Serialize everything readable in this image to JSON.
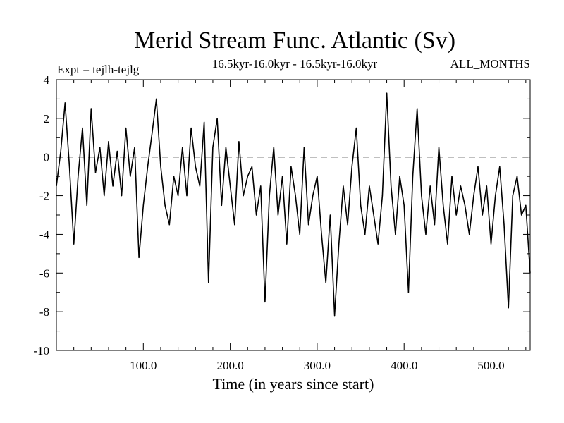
{
  "chart_data": {
    "type": "line",
    "title": "Merid Stream Func. Atlantic (Sv)",
    "subtitle": "16.5kyr-16.0kyr - 16.5kyr-16.0kyr",
    "experiment_label": "Expt = tejlh-tejlg",
    "months_label": "ALL_MONTHS",
    "xlabel": "Time (in years since start)",
    "ylabel": "",
    "xlim": [
      0,
      545
    ],
    "ylim": [
      -10,
      4
    ],
    "x_ticks": [
      {
        "value": 100,
        "label": "100.0"
      },
      {
        "value": 200,
        "label": "200.0"
      },
      {
        "value": 300,
        "label": "300.0"
      },
      {
        "value": 400,
        "label": "400.0"
      },
      {
        "value": 500,
        "label": "500.0"
      }
    ],
    "y_ticks": [
      {
        "value": 4,
        "label": "4"
      },
      {
        "value": 2,
        "label": "2"
      },
      {
        "value": 0,
        "label": "0"
      },
      {
        "value": -2,
        "label": "-2"
      },
      {
        "value": -4,
        "label": "-4"
      },
      {
        "value": -6,
        "label": "-6"
      },
      {
        "value": -8,
        "label": "-8"
      },
      {
        "value": -10,
        "label": "-10"
      }
    ],
    "reference_line": {
      "y": 0,
      "style": "dashed"
    },
    "series": [
      {
        "name": "Merid Stream Func. Atlantic",
        "color": "#000000",
        "x": [
          0,
          5,
          10,
          15,
          20,
          25,
          30,
          35,
          40,
          45,
          50,
          55,
          60,
          65,
          70,
          75,
          80,
          85,
          90,
          95,
          100,
          105,
          110,
          115,
          120,
          125,
          130,
          135,
          140,
          145,
          150,
          155,
          160,
          165,
          170,
          175,
          180,
          185,
          190,
          195,
          200,
          205,
          210,
          215,
          220,
          225,
          230,
          235,
          240,
          245,
          250,
          255,
          260,
          265,
          270,
          275,
          280,
          285,
          290,
          295,
          300,
          305,
          310,
          315,
          320,
          325,
          330,
          335,
          340,
          345,
          350,
          355,
          360,
          365,
          370,
          375,
          380,
          385,
          390,
          395,
          400,
          405,
          410,
          415,
          420,
          425,
          430,
          435,
          440,
          445,
          450,
          455,
          460,
          465,
          470,
          475,
          480,
          485,
          490,
          495,
          500,
          505,
          510,
          515,
          520,
          525,
          530,
          535,
          540,
          545
        ],
        "values": [
          -1.5,
          0.3,
          2.8,
          -0.5,
          -4.5,
          -1.0,
          1.5,
          -2.5,
          2.5,
          -0.8,
          0.5,
          -2.0,
          0.8,
          -1.5,
          0.3,
          -2.0,
          1.5,
          -1.0,
          0.5,
          -5.2,
          -2.5,
          -0.5,
          1.2,
          3.0,
          -0.5,
          -2.5,
          -3.5,
          -1.0,
          -2.0,
          0.5,
          -2.0,
          1.5,
          -0.5,
          -1.5,
          1.8,
          -6.5,
          0.5,
          2.0,
          -2.5,
          0.5,
          -1.5,
          -3.5,
          0.8,
          -2.0,
          -1.0,
          -0.5,
          -3.0,
          -1.5,
          -7.5,
          -2.0,
          0.5,
          -3.0,
          -1.0,
          -4.5,
          -0.5,
          -2.0,
          -4.0,
          0.5,
          -3.5,
          -2.0,
          -1.0,
          -4.0,
          -6.5,
          -3.0,
          -8.2,
          -4.5,
          -1.5,
          -3.5,
          -0.5,
          1.5,
          -2.5,
          -4.0,
          -1.5,
          -3.0,
          -4.5,
          -2.0,
          3.3,
          -1.5,
          -4.0,
          -1.0,
          -2.5,
          -7.0,
          -1.0,
          2.5,
          -2.0,
          -4.0,
          -1.5,
          -3.5,
          0.5,
          -2.5,
          -4.5,
          -1.0,
          -3.0,
          -1.5,
          -2.5,
          -4.0,
          -2.0,
          -0.5,
          -3.0,
          -1.5,
          -4.5,
          -2.0,
          -0.5,
          -3.5,
          -7.8,
          -2.0,
          -1.0,
          -3.0,
          -2.5,
          -6.0
        ]
      }
    ]
  }
}
